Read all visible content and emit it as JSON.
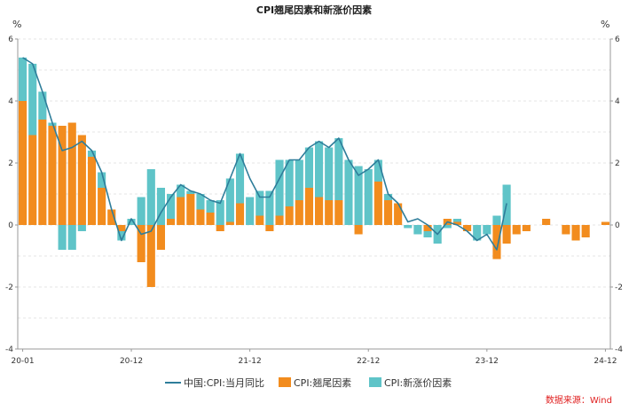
{
  "chart_data": {
    "type": "bar",
    "title": "CPI翘尾因素和新涨价因素",
    "unit_left": "%",
    "unit_right": "%",
    "ylim": [
      -4,
      6
    ],
    "y_ticks": [
      -4,
      -2,
      0,
      2,
      4,
      6
    ],
    "x_tick_labels": [
      "20-01",
      "20-12",
      "21-12",
      "22-12",
      "23-12",
      "24-12"
    ],
    "x_tick_index": [
      0,
      11,
      23,
      35,
      47,
      59
    ],
    "grid": true,
    "legend_position": "bottom",
    "source": "数据来源：Wind",
    "series": [
      {
        "name": "中国:CPI:当月同比",
        "kind": "line",
        "color": "#2e7d9a",
        "values": [
          5.4,
          5.2,
          4.3,
          3.3,
          2.4,
          2.5,
          2.7,
          2.4,
          1.7,
          0.5,
          -0.5,
          0.2,
          -0.3,
          -0.2,
          0.4,
          0.9,
          1.3,
          1.1,
          1.0,
          0.8,
          0.7,
          1.5,
          2.3,
          1.5,
          0.9,
          0.9,
          1.5,
          2.1,
          2.1,
          2.5,
          2.7,
          2.5,
          2.8,
          2.1,
          1.6,
          1.8,
          2.1,
          1.0,
          0.7,
          0.1,
          0.2,
          0.0,
          -0.3,
          0.1,
          0.0,
          -0.2,
          -0.5,
          -0.3,
          -0.8,
          0.7
        ]
      },
      {
        "name": "CPI:翘尾因素",
        "kind": "bar",
        "color": "#f28c1e",
        "values": [
          4.0,
          2.9,
          3.4,
          3.2,
          3.2,
          3.3,
          2.9,
          2.2,
          1.2,
          0.5,
          -0.2,
          0.0,
          -1.2,
          -2.0,
          -0.8,
          0.2,
          0.9,
          1.0,
          0.5,
          0.4,
          -0.2,
          0.1,
          0.7,
          0.0,
          0.3,
          -0.2,
          0.3,
          0.6,
          0.8,
          1.2,
          0.9,
          0.8,
          0.8,
          0.0,
          -0.3,
          0.0,
          1.4,
          0.8,
          0.7,
          0.0,
          0.0,
          -0.2,
          0.0,
          0.2,
          0.1,
          -0.2,
          0.0,
          0.0,
          -1.1,
          -0.6,
          -0.3,
          -0.2,
          0.0,
          0.2,
          0.0,
          -0.3,
          -0.5,
          -0.4,
          0.0,
          0.1
        ]
      },
      {
        "name": "CPI:新涨价因素",
        "kind": "bar",
        "color": "#5fc4c8",
        "values": [
          1.4,
          2.3,
          0.9,
          0.1,
          -0.8,
          -0.8,
          -0.2,
          0.2,
          0.5,
          0.0,
          -0.3,
          0.2,
          0.9,
          1.8,
          1.2,
          0.8,
          0.4,
          0.1,
          0.5,
          0.4,
          0.8,
          1.4,
          1.6,
          0.9,
          0.8,
          1.1,
          1.8,
          1.5,
          1.3,
          1.3,
          1.8,
          1.7,
          2.0,
          2.1,
          1.9,
          1.8,
          0.7,
          0.2,
          0.0,
          -0.1,
          -0.3,
          -0.2,
          -0.6,
          -0.1,
          0.1,
          0.0,
          -0.5,
          -0.3,
          0.3,
          1.3,
          0.0,
          0.0,
          0.0,
          0.0,
          0.0,
          0.0,
          0.0,
          0.0,
          0.0,
          0.0
        ]
      }
    ]
  }
}
